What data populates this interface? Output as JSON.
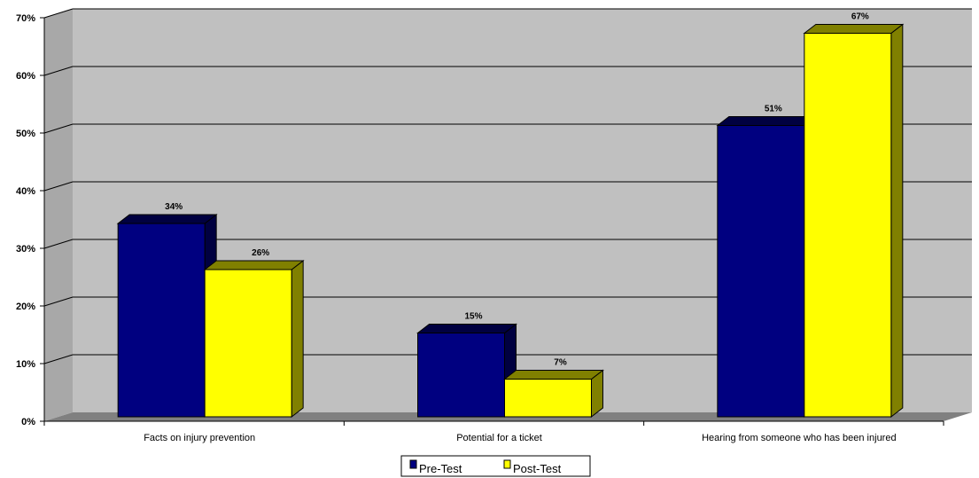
{
  "chart_data": {
    "type": "bar",
    "title": "",
    "xlabel": "",
    "ylabel": "",
    "categories": [
      "Facts on injury prevention",
      "Potential for a ticket",
      "Hearing from someone who has been injured"
    ],
    "series": [
      {
        "name": "Pre-Test",
        "values": [
          34,
          15,
          51
        ],
        "labels": [
          "34%",
          "15%",
          "51%"
        ],
        "color": "#000080",
        "side_color": "#000040"
      },
      {
        "name": "Post-Test",
        "values": [
          26,
          7,
          67
        ],
        "labels": [
          "26%",
          "7%",
          "67%"
        ],
        "color": "#ffff00",
        "side_color": "#808000"
      }
    ],
    "yticks": [
      0,
      10,
      20,
      30,
      40,
      50,
      60,
      70
    ],
    "ytick_labels": [
      "0%",
      "10%",
      "20%",
      "30%",
      "40%",
      "50%",
      "60%",
      "70%"
    ],
    "ylim": [
      0,
      70
    ],
    "grid": true,
    "legend_position": "bottom",
    "style": "3d-clustered-column",
    "colors": {
      "wall": "#c0c0c0",
      "floor": "#808080",
      "gridline": "#000000"
    }
  }
}
